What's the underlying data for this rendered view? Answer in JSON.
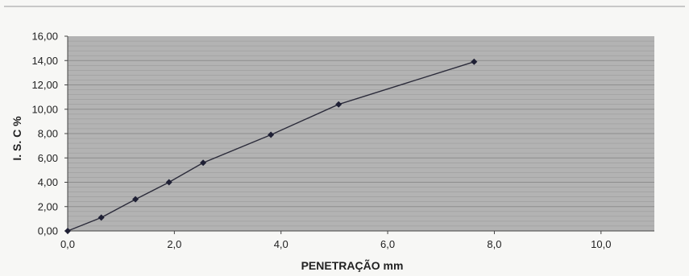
{
  "chart_data": {
    "type": "line",
    "title": "",
    "xlabel": "PENETRAÇÃO mm",
    "ylabel": "I. S. C %",
    "xlim": [
      0,
      11
    ],
    "ylim": [
      0,
      16
    ],
    "x_ticks": [
      "0,0",
      "2,0",
      "4,0",
      "6,0",
      "8,0",
      "10,0"
    ],
    "x_tick_values": [
      0,
      2,
      4,
      6,
      8,
      10
    ],
    "y_ticks": [
      "0,00",
      "2,00",
      "4,00",
      "6,00",
      "8,00",
      "10,00",
      "12,00",
      "14,00",
      "16,00"
    ],
    "y_tick_values": [
      0,
      2,
      4,
      6,
      8,
      10,
      12,
      14,
      16
    ],
    "grid": true,
    "legend": "none",
    "series": [
      {
        "x": [
          0.0,
          0.63,
          1.27,
          1.9,
          2.54,
          3.81,
          5.08,
          7.62
        ],
        "y": [
          0.0,
          1.1,
          2.6,
          4.0,
          5.6,
          7.9,
          10.4,
          13.9
        ]
      }
    ],
    "colors": {
      "plot_background": "#b3b3b3",
      "gridline": "#8a8a8a",
      "line": "#2b2b3a",
      "marker": "#1f2035"
    }
  }
}
